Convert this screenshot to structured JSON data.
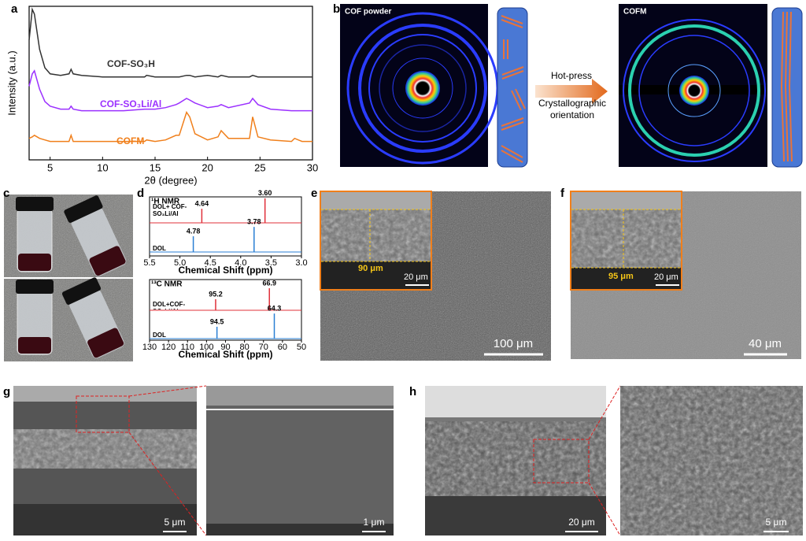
{
  "panel_labels": [
    "a",
    "b",
    "c",
    "d",
    "e",
    "f",
    "g",
    "h"
  ],
  "chart_data": [
    {
      "type": "line",
      "xlabel": "2θ (degree)",
      "ylabel": "Intensity (a.u.)",
      "xlim": [
        3,
        30
      ],
      "xticks": [
        5,
        10,
        15,
        20,
        25,
        30
      ],
      "ylim": [
        0,
        100
      ],
      "x": [
        3,
        3.3,
        3.5,
        4,
        4.5,
        5,
        6,
        6.8,
        7,
        7.2,
        8,
        10,
        12,
        14,
        14.2,
        15,
        16,
        17,
        17.3,
        18,
        18.3,
        18.8,
        20,
        21,
        21.3,
        22,
        24,
        24.3,
        24.8,
        26,
        28,
        28.3,
        29,
        30
      ],
      "series": [
        {
          "name": "COF-SO₃H",
          "color": "#333333",
          "values": [
            78,
            98,
            95,
            72,
            60,
            56,
            55,
            56,
            59,
            56,
            55,
            54,
            54,
            54,
            55,
            54,
            54,
            54,
            54,
            55,
            55,
            54,
            55,
            54,
            55,
            54,
            54,
            55,
            54,
            54,
            54,
            54,
            54,
            54
          ]
        },
        {
          "name": "COF-SO₃Li/Al",
          "color": "#9b30ff",
          "values": [
            48,
            56,
            58,
            46,
            38,
            35,
            33,
            33,
            35,
            33,
            32,
            32,
            32,
            33,
            33,
            33,
            34,
            36,
            37,
            40,
            39,
            37,
            34,
            35,
            36,
            34,
            37,
            40,
            36,
            33,
            32,
            32,
            32,
            32
          ]
        },
        {
          "name": "COFM",
          "color": "#f07f1b",
          "values": [
            14,
            15,
            16,
            14,
            13,
            12,
            12,
            12,
            16,
            12,
            12,
            12,
            12,
            12,
            13,
            12,
            13,
            16,
            16,
            31,
            28,
            17,
            13,
            15,
            19,
            14,
            14,
            28,
            15,
            13,
            12,
            14,
            12,
            12
          ]
        }
      ]
    },
    {
      "type": "spectrum",
      "title": "¹H NMR",
      "xlabel": "Chemical Shift (ppm)",
      "xlim": [
        5.5,
        3.0
      ],
      "xticks": [
        5.5,
        {
          "value": 5,
          "label": "5.0"
        },
        4.5,
        {
          "value": 4,
          "label": "4.0"
        },
        3.5,
        {
          "value": 3,
          "label": "3.0"
        }
      ],
      "ylim": [
        0,
        100
      ],
      "series": [
        {
          "name": "DOL+ COF-SO₃Li/Al",
          "color": "#e0303a",
          "x": [
            4.64,
            {
              "value": 3.6,
              "label": "3.60"
            }
          ],
          "values": [
            51,
            89
          ]
        },
        {
          "name": "DOL",
          "color": "#2a7fd4",
          "x": [
            4.78,
            3.78
          ],
          "values": [
            57,
            91
          ]
        }
      ]
    },
    {
      "type": "spectrum",
      "title": "¹³C NMR",
      "xlabel": "Chemical Shift (ppm)",
      "xlim": [
        130,
        50
      ],
      "xticks": [
        130,
        120,
        110,
        100,
        90,
        80,
        70,
        60,
        50
      ],
      "ylim": [
        0,
        100
      ],
      "series": [
        {
          "name": "DOL+COF-SO₃Li/Al",
          "color": "#e0303a",
          "x": [
            95.2,
            66.9
          ],
          "values": [
            40,
            80
          ]
        },
        {
          "name": "DOL",
          "color": "#2a7fd4",
          "x": [
            94.5,
            64.3
          ],
          "values": [
            43,
            91
          ]
        }
      ]
    }
  ],
  "diffraction": {
    "left_title": "COF powder",
    "right_title": "COFM",
    "arrow_top": "Hot-press",
    "arrow_bottom": "Crystallographic orientation"
  },
  "sem": {
    "e": {
      "thickness": "90 μm",
      "inset_scale": "20 μm",
      "scale": "100 μm"
    },
    "f": {
      "thickness": "95 μm",
      "inset_scale": "20 μm",
      "scale": "40 μm"
    },
    "g": {
      "left_scale": "5 μm",
      "right_scale": "1 μm"
    },
    "h": {
      "left_scale": "20 μm",
      "right_scale": "5 μm"
    }
  }
}
